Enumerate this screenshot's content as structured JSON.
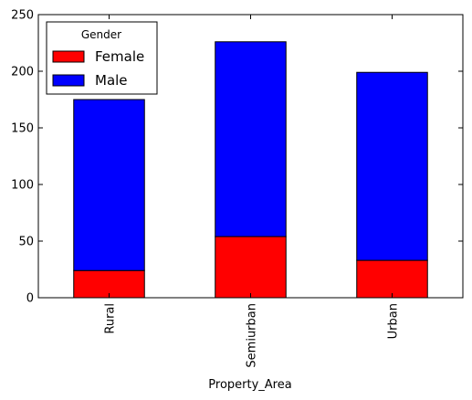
{
  "chart_data": {
    "type": "bar",
    "stacked": true,
    "categories": [
      "Rural",
      "Semiurban",
      "Urban"
    ],
    "series": [
      {
        "name": "Female",
        "values": [
          24,
          54,
          33
        ],
        "color": "#ff0000"
      },
      {
        "name": "Male",
        "values": [
          151,
          172,
          166
        ],
        "color": "#0000ff"
      }
    ],
    "xlabel": "Property_Area",
    "ylabel": "",
    "ylim": [
      0,
      250
    ],
    "yticks": [
      0,
      50,
      100,
      150,
      200,
      250
    ],
    "legend": {
      "title": "Gender",
      "position": "top-left"
    },
    "grid": false,
    "tick_label_rotation": 90
  }
}
